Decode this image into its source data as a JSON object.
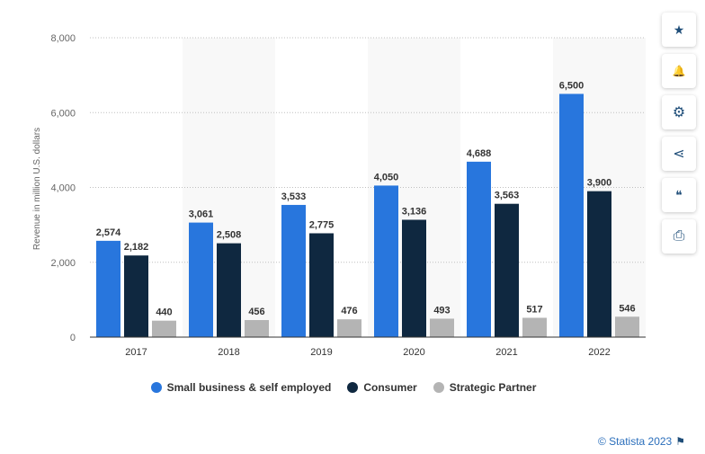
{
  "chart_data": {
    "type": "bar",
    "categories": [
      "2017",
      "2018",
      "2019",
      "2020",
      "2021",
      "2022"
    ],
    "series": [
      {
        "name": "Small business & self employed",
        "color": "#2876dd",
        "values": [
          2574,
          3061,
          3533,
          4050,
          4688,
          6500
        ]
      },
      {
        "name": "Consumer",
        "color": "#0f2840",
        "values": [
          2182,
          2508,
          2775,
          3136,
          3563,
          3900
        ]
      },
      {
        "name": "Strategic Partner",
        "color": "#b4b4b4",
        "values": [
          440,
          456,
          476,
          493,
          517,
          546
        ]
      }
    ],
    "ylabel": "Revenue in million U.S. dollars",
    "ylim": [
      0,
      8000
    ],
    "yticks": [
      0,
      2000,
      4000,
      6000,
      8000
    ],
    "grid": true,
    "legend_position": "bottom"
  },
  "toolbar": {
    "buttons": [
      {
        "name": "favorite-button",
        "icon": "star-icon",
        "glyph": "★"
      },
      {
        "name": "notification-button",
        "icon": "bell-icon",
        "glyph": "🔔"
      },
      {
        "name": "settings-button",
        "icon": "gear-icon",
        "glyph": "⚙"
      },
      {
        "name": "share-button",
        "icon": "share-icon",
        "glyph": "⋖"
      },
      {
        "name": "cite-button",
        "icon": "quote-icon",
        "glyph": "❝"
      },
      {
        "name": "print-button",
        "icon": "print-icon",
        "glyph": "⎙"
      }
    ]
  },
  "credit": "© Statista 2023"
}
